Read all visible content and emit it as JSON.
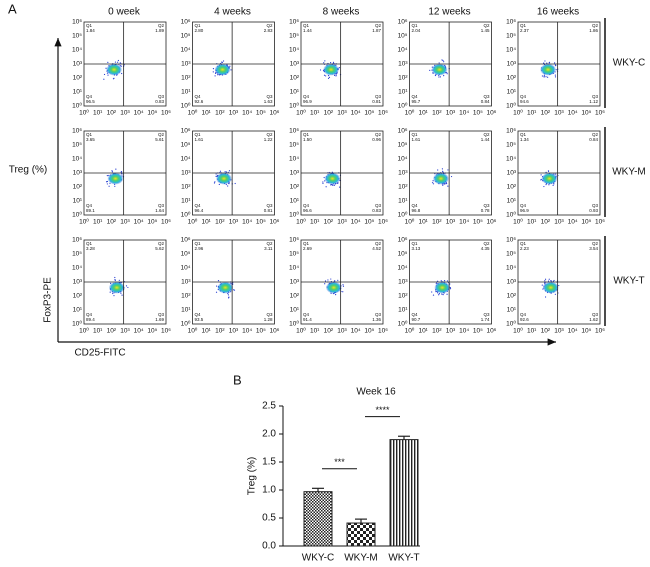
{
  "flow_panel": {
    "label": "A",
    "columns": [
      "0 week",
      "4 weeks",
      "8 weeks",
      "12 weeks",
      "16 weeks"
    ],
    "rows": [
      "WKY-C",
      "WKY-M",
      "WKY-T"
    ],
    "row_title": "Treg (%)",
    "y_axis_label": "FoxP3-PE",
    "x_axis_label": "CD25-FITC",
    "quadrant_names": [
      "Q1",
      "Q2",
      "Q3",
      "Q4"
    ],
    "decade_labels": [
      "10⁰",
      "10¹",
      "10²",
      "10³",
      "10⁴",
      "10⁵",
      "10⁶"
    ],
    "plots": [
      [
        [
          "1.84",
          "1.89",
          "0.83",
          "96.5"
        ],
        [
          "2.80",
          "2.83",
          "1.63",
          "92.6"
        ],
        [
          "1.44",
          "1.87",
          "0.81",
          "96.9"
        ],
        [
          "2.04",
          "1.45",
          "0.84",
          "95.7"
        ],
        [
          "2.37",
          "1.86",
          "1.12",
          "94.6"
        ]
      ],
      [
        [
          "3.65",
          "5.61",
          "1.64",
          "89.1"
        ],
        [
          "1.61",
          "1.22",
          "0.81",
          "96.4"
        ],
        [
          "1.50",
          "0.96",
          "0.83",
          "96.6"
        ],
        [
          "1.61",
          "1.44",
          "0.78",
          "96.8"
        ],
        [
          "1.34",
          "0.84",
          "0.93",
          "96.9"
        ]
      ],
      [
        [
          "3.28",
          "5.62",
          "1.69",
          "89.4"
        ],
        [
          "2.96",
          "3.11",
          "1.28",
          "93.5"
        ],
        [
          "2.69",
          "4.52",
          "1.36",
          "91.4"
        ],
        [
          "3.13",
          "4.35",
          "1.74",
          "90.7"
        ],
        [
          "2.23",
          "3.54",
          "1.62",
          "92.6"
        ]
      ]
    ]
  },
  "chart_data": {
    "type": "bar",
    "label": "B",
    "title": "Week 16",
    "y_label": "Treg (%)",
    "categories": [
      "WKY-C",
      "WKY-M",
      "WKY-T"
    ],
    "values": [
      0.97,
      0.41,
      1.9
    ],
    "errors": [
      0.06,
      0.07,
      0.06
    ],
    "color": "#222222",
    "ylim": [
      0,
      2.5
    ],
    "yticks": [
      {
        "value": 0,
        "label": "0.0"
      },
      0.5,
      {
        "value": 1,
        "label": "1.0"
      },
      1.5,
      {
        "value": 2,
        "label": "2.0"
      },
      2.5
    ],
    "comparisons": [
      "***",
      "****"
    ]
  }
}
